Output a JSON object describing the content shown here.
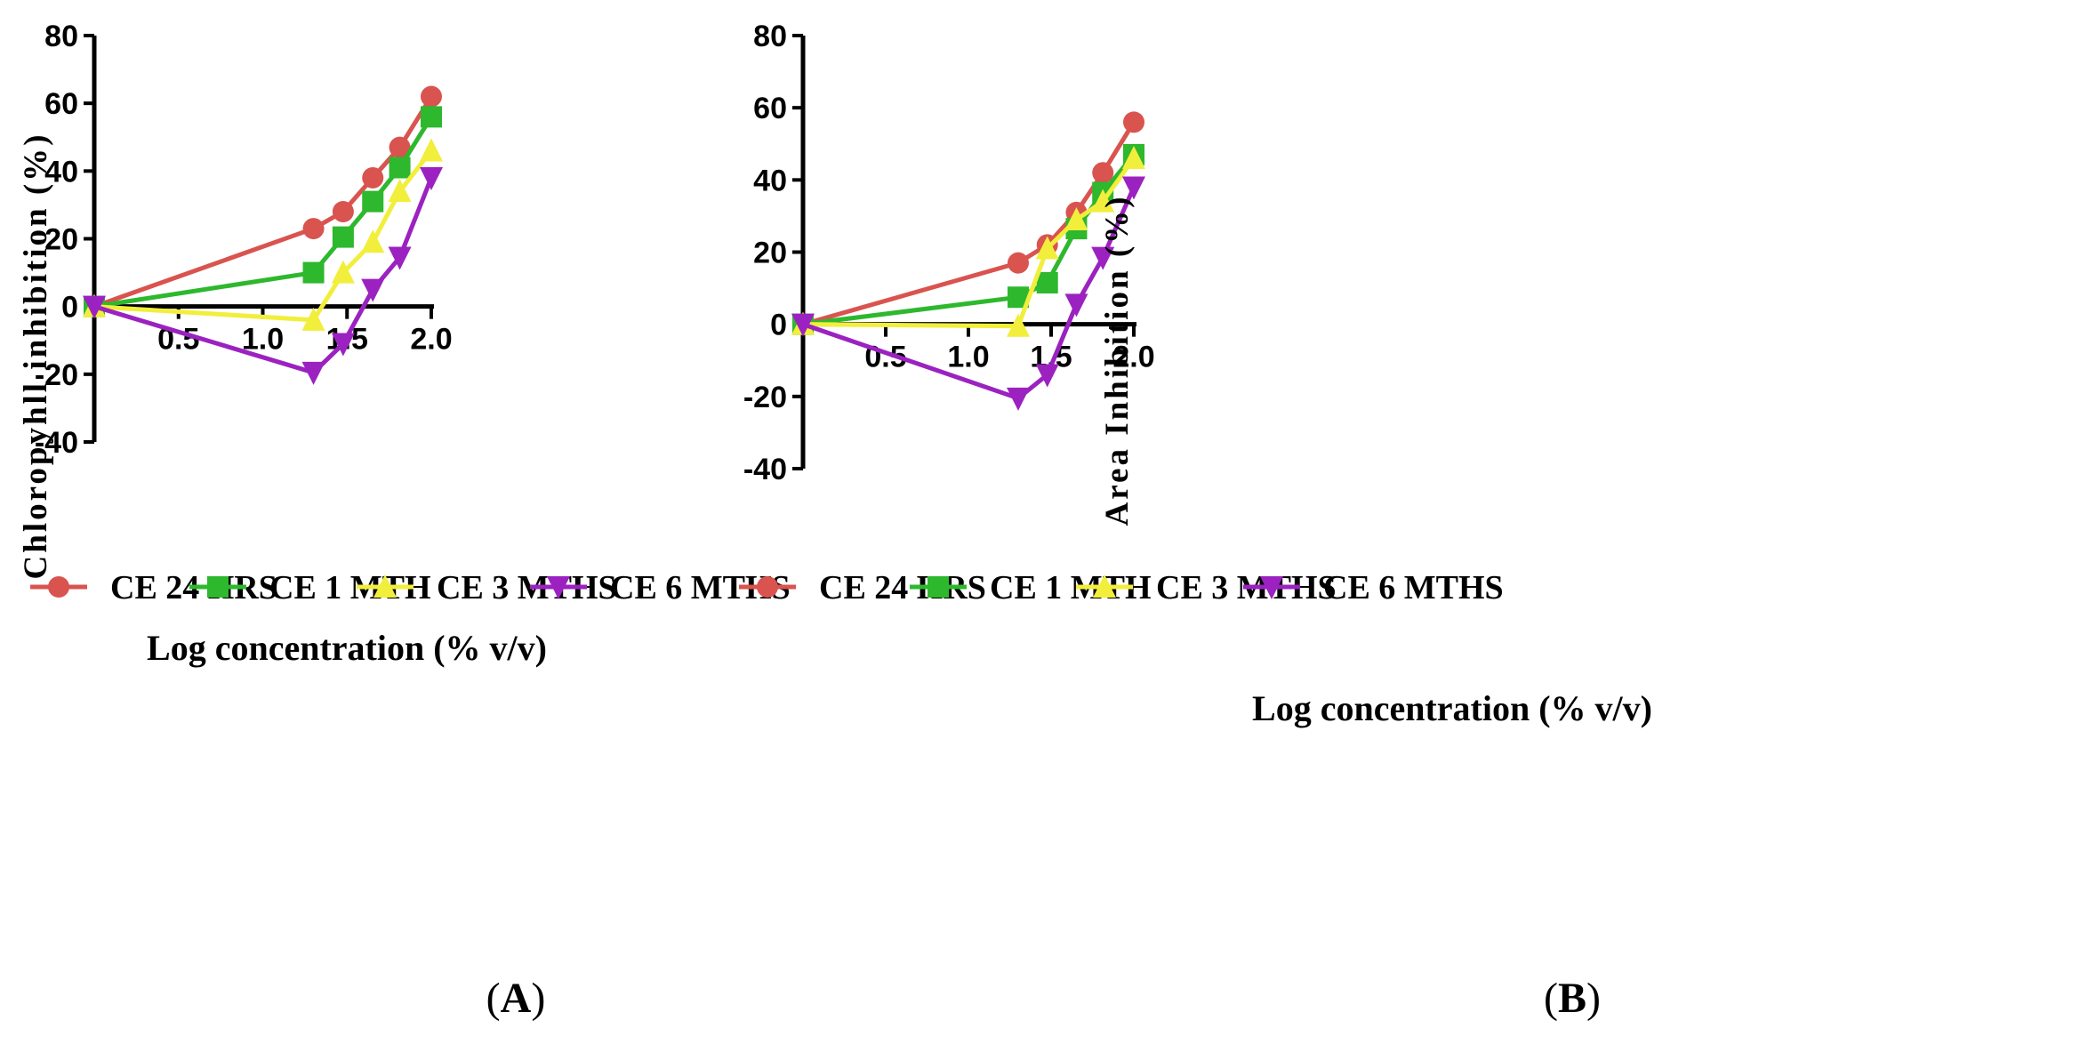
{
  "chart_data": [
    {
      "type": "line",
      "panel_label": "A",
      "xlabel": "Log concentration (% v/v)",
      "ylabel": "Chloropyhll inhibition (%)",
      "xlim": [
        0,
        2.0
      ],
      "ylim": [
        -40,
        80
      ],
      "xticks": [
        "0.5",
        "1.0",
        "1.5",
        "2.0"
      ],
      "yticks": [
        "-40",
        "-20",
        "0",
        "20",
        "40",
        "60",
        "80"
      ],
      "x": [
        0,
        1.301,
        1.477,
        1.653,
        1.813,
        2.0
      ],
      "series": [
        {
          "name": "CE 24 HRS",
          "color": "#d9534f",
          "marker": "circle",
          "values": [
            0,
            23,
            28,
            38,
            47,
            62
          ]
        },
        {
          "name": "CE 1 MTH",
          "color": "#2db82d",
          "marker": "square",
          "values": [
            0,
            10,
            20.5,
            31,
            41,
            56
          ]
        },
        {
          "name": "CE 3 MTHS",
          "color": "#f2ee3c",
          "marker": "triangle-up",
          "values": [
            0,
            -4,
            10,
            19,
            34,
            46
          ]
        },
        {
          "name": "CE 6 MTHS",
          "color": "#9b22c0",
          "marker": "triangle-down",
          "values": [
            0,
            -19.5,
            -11,
            5,
            14.5,
            38
          ]
        }
      ]
    },
    {
      "type": "line",
      "panel_label": "B",
      "xlabel": "Log concentration (% v/v)",
      "ylabel": "Area Inhibition  (%)",
      "xlim": [
        0,
        2.0
      ],
      "ylim": [
        -40,
        80
      ],
      "xticks": [
        "0.5",
        "1.0",
        "1.5",
        "2.0"
      ],
      "yticks": [
        "-40",
        "-20",
        "0",
        "20",
        "40",
        "60",
        "80"
      ],
      "x": [
        0,
        1.301,
        1.477,
        1.653,
        1.813,
        2.0
      ],
      "series": [
        {
          "name": "CE 24 HRS",
          "color": "#d9534f",
          "marker": "circle",
          "values": [
            0,
            17,
            22,
            31,
            42,
            56
          ]
        },
        {
          "name": "CE 1 MTH",
          "color": "#2db82d",
          "marker": "square",
          "values": [
            0,
            7.5,
            11.5,
            26.5,
            36.5,
            47
          ]
        },
        {
          "name": "CE 3 MTHS",
          "color": "#f2ee3c",
          "marker": "triangle-up",
          "values": [
            0,
            -0.5,
            21,
            29,
            34,
            46
          ]
        },
        {
          "name": "CE 6 MTHS",
          "color": "#9b22c0",
          "marker": "triangle-down",
          "values": [
            0,
            -20.5,
            -14,
            5.5,
            18.5,
            38
          ]
        }
      ]
    }
  ]
}
